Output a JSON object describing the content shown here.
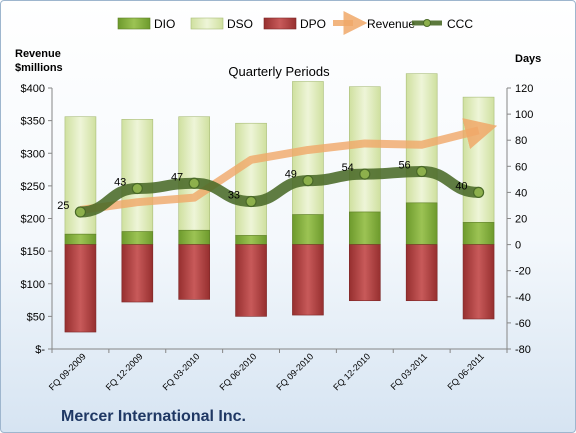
{
  "chart_data": {
    "type": "bar",
    "title": "Quarterly Periods",
    "left_axis_title": [
      "Revenue",
      "$millions"
    ],
    "right_axis_title": "Days",
    "company": "Mercer International Inc.",
    "categories": [
      "FQ 09-2009",
      "FQ 12-2009",
      "FQ 03-2010",
      "FQ 06-2010",
      "FQ 09-2010",
      "FQ 12-2010",
      "FQ 03-2011",
      "FQ 06-2011"
    ],
    "left_axis": {
      "min": 0,
      "max": 400,
      "step": 50,
      "ticks": [
        "$-",
        "$50",
        "$100",
        "$150",
        "$200",
        "$250",
        "$300",
        "$350",
        "$400"
      ]
    },
    "right_axis": {
      "min": -80,
      "max": 120,
      "step": 20,
      "ticks": [
        "-80",
        "-60",
        "-40",
        "-20",
        "0",
        "20",
        "40",
        "60",
        "80",
        "100",
        "120"
      ]
    },
    "series": [
      {
        "name": "DIO",
        "type": "stacked-bar",
        "axis": "right",
        "color": "#7fa83a",
        "values": [
          8,
          10,
          11,
          7,
          23,
          25,
          32,
          17
        ]
      },
      {
        "name": "DSO",
        "type": "stacked-bar",
        "axis": "right",
        "color": "#dce9b8",
        "values": [
          90,
          86,
          87,
          86,
          102,
          96,
          99,
          96
        ]
      },
      {
        "name": "DPO",
        "type": "bar",
        "axis": "right",
        "color": "#a83c3c",
        "values": [
          -67,
          -44,
          -42,
          -55,
          -54,
          -43,
          -43,
          -57
        ]
      },
      {
        "name": "Revenue",
        "type": "line",
        "axis": "left",
        "color": "#f0a868",
        "values": [
          213,
          225,
          232,
          290,
          305,
          315,
          313,
          335
        ]
      },
      {
        "name": "CCC",
        "type": "line",
        "axis": "right",
        "color": "#4a6a28",
        "values": [
          25,
          43,
          47,
          33,
          49,
          54,
          56,
          40
        ]
      }
    ],
    "ccc_labels": [
      "25",
      "43",
      "47",
      "33",
      "49",
      "54",
      "56",
      "40"
    ],
    "grid": false,
    "legend_position": "top"
  }
}
